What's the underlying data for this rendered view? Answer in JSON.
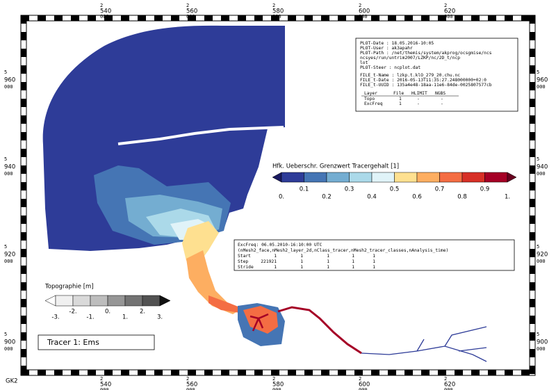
{
  "x_grid_labels": [
    {
      "top": "2",
      "middle": "540",
      "bottom": "000"
    },
    {
      "top": "2",
      "middle": "560",
      "bottom": "000"
    },
    {
      "top": "2",
      "middle": "580",
      "bottom": "000"
    },
    {
      "top": "2",
      "middle": "600",
      "bottom": "000"
    },
    {
      "top": "2",
      "middle": "620",
      "bottom": "000"
    }
  ],
  "y_grid_labels": [
    {
      "top": "5",
      "middle": "960",
      "bottom": "000"
    },
    {
      "top": "5",
      "middle": "940",
      "bottom": "000"
    },
    {
      "top": "5",
      "middle": "920",
      "bottom": "000"
    },
    {
      "top": "5",
      "middle": "900",
      "bottom": "000"
    }
  ],
  "crs": "GK2",
  "info_box": {
    "plot_lines": [
      "PLOT-Date  : 18.05.2016-10:05",
      "PLOT-User  : ak3apahr",
      "PLOT-Path  : /net/themis/system/akprog/ocsgmise/ncs",
      "             ncsyes/run/untrim2007/LZKP/nc/2D_t/ncp",
      "             lot",
      "PLOT-Steer : ncplot.dat"
    ],
    "file_lines": [
      "FILE_t-Name : lzkp.t.klO_279_20.chu.nc",
      "FILE_t-Date : 2016-05-13T11:35:27.248000000+02:0",
      "FILE_t-UUID : 135a4e48-18aa-11e6-84de-0025807577cb"
    ],
    "table": {
      "header": [
        "Layer",
        "File",
        "HLIMIT",
        "NGBS"
      ],
      "rows": [
        [
          "Topo",
          "1",
          "-",
          "-"
        ],
        [
          "ExcFreq",
          "1",
          "-",
          "-"
        ]
      ]
    }
  },
  "tracer_legend": {
    "title": "Hfk. Ueberschr. Grenzwert Tracergehalt [1]",
    "labels": [
      "0.",
      "0.1",
      "0.2",
      "0.3",
      "0.4",
      "0.5",
      "0.6",
      "0.7",
      "0.8",
      "0.9",
      "1."
    ]
  },
  "exc_box": {
    "title": "ExcFreq: 06.05.2010-16:10:00 UTC",
    "dims": "(nMesh2_face,nMesh2_layer_2d,nClass_tracer,nMesh2_tracer_classes,nAnalysis_time)",
    "rows": [
      [
        "Start",
        "1",
        "1",
        "1",
        "1",
        "1"
      ],
      [
        "Step",
        "221921",
        "1",
        "1",
        "1",
        "1"
      ],
      [
        "Stride",
        "1",
        "1",
        "1",
        "1",
        "1"
      ]
    ]
  },
  "topo_legend": {
    "title": "Topographie [m]",
    "labels": [
      "-3.",
      "-2.",
      "-1.",
      "0.",
      "1.",
      "2.",
      "3."
    ]
  },
  "tracer_title": "Tracer 1: Ems"
}
